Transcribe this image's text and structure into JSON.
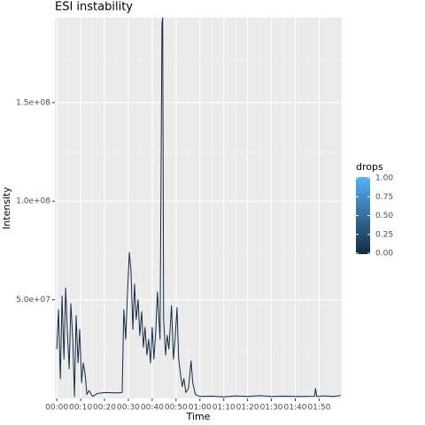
{
  "chart_data": {
    "type": "line",
    "title": "ESI instability",
    "x_label": "Time",
    "y_label": "Intensity",
    "x": [
      0,
      0.7,
      1.5,
      2.2,
      3,
      3.7,
      4.4,
      5.2,
      5.9,
      6.7,
      7.4,
      8.1,
      8.9,
      9.6,
      10.4,
      11.1,
      11.9,
      12.6,
      13.5,
      15,
      17,
      20,
      25,
      27.4,
      28.1,
      28.9,
      29.6,
      30.4,
      31.1,
      31.9,
      32.6,
      33.3,
      34.1,
      34.8,
      35.6,
      36.3,
      37,
      37.8,
      38.5,
      39.3,
      40,
      40.7,
      41.5,
      42.2,
      43.3,
      44.1,
      44.4,
      44.8,
      45.6,
      46.3,
      47,
      48.1,
      48.9,
      49.6,
      50.4,
      51.1,
      51.9,
      52.6,
      53.3,
      54.1,
      55.2,
      56.3,
      57,
      58.1,
      60,
      65,
      70,
      75,
      80,
      85,
      90,
      95,
      100,
      108.1,
      108.5,
      109,
      112,
      116,
      119
    ],
    "series": [
      {
        "color": "#132B43",
        "values": [
          25000000,
          45000000,
          10000000,
          52000000,
          20000000,
          56000000,
          35000000,
          15000000,
          48000000,
          30000000,
          1000000,
          42000000,
          18000000,
          35000000,
          8000000,
          18000000,
          12000000,
          2000000,
          4000000,
          1000000,
          2500000,
          3000000,
          2800000,
          3000000,
          45000000,
          30000000,
          52000000,
          74000000,
          65000000,
          35000000,
          58000000,
          40000000,
          50000000,
          32000000,
          44000000,
          26000000,
          36000000,
          22000000,
          30000000,
          18000000,
          36000000,
          20000000,
          34000000,
          54000000,
          30000000,
          190000000,
          193000000,
          40000000,
          22000000,
          32000000,
          25000000,
          47000000,
          20000000,
          30000000,
          46000000,
          20000000,
          12000000,
          6000000,
          10000000,
          3000000,
          5000000,
          19000000,
          8000000,
          2000000,
          1000000,
          1200000,
          800000,
          1300000,
          1000000,
          1400000,
          1000000,
          1200000,
          1000000,
          1100000,
          5000000,
          1000000,
          1300000,
          1000000,
          1500000
        ]
      }
    ],
    "xlim": [
      -0.8,
      119.5
    ],
    "ylim": [
      0,
      193000000
    ],
    "xticks": [
      {
        "value": 0,
        "label": "00:00"
      },
      {
        "value": 10,
        "label": "00:10"
      },
      {
        "value": 20,
        "label": "00:20"
      },
      {
        "value": 30,
        "label": "00:30"
      },
      {
        "value": 40,
        "label": "00:40"
      },
      {
        "value": 50,
        "label": "00:50"
      },
      {
        "value": 60,
        "label": "01:00"
      },
      {
        "value": 70,
        "label": "01:10"
      },
      {
        "value": 80,
        "label": "01:20"
      },
      {
        "value": 90,
        "label": "01:30"
      },
      {
        "value": 100,
        "label": "01:40"
      },
      {
        "value": 110,
        "label": "01:50"
      }
    ],
    "yticks": [
      {
        "value": 50000000,
        "label": "5.0e+07"
      },
      {
        "value": 100000000,
        "label": "1.0e+08"
      },
      {
        "value": 150000000,
        "label": "1.5e+08"
      }
    ],
    "grid": true,
    "legend": {
      "title": "drops",
      "low_color": "#132B43",
      "high_color": "#56B1F7",
      "lim": [
        0,
        1
      ],
      "ticks": [
        {
          "value": 0,
          "label": "0.00"
        },
        {
          "value": 0.25,
          "label": "0.25"
        },
        {
          "value": 0.5,
          "label": "0.50"
        },
        {
          "value": 0.75,
          "label": "0.75"
        },
        {
          "value": 1,
          "label": "1.00"
        }
      ]
    }
  }
}
